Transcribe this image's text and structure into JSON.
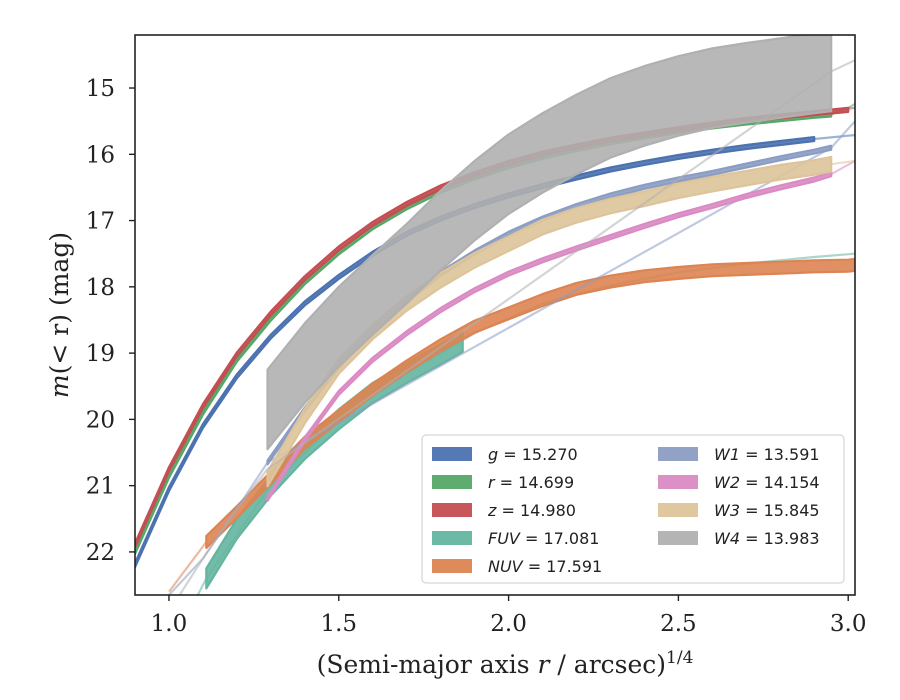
{
  "chart_data": {
    "type": "line",
    "xlabel": "(Semi-major axis r / arcsec)^{1/4}",
    "ylabel": "m(< r) (mag)",
    "xlim": [
      0.9,
      3.02
    ],
    "ylim": [
      22.65,
      14.2
    ],
    "y_inverted": true,
    "xticks": [
      1.0,
      1.5,
      2.0,
      2.5,
      3.0
    ],
    "xtick_labels": [
      "1.0",
      "1.5",
      "2.0",
      "2.5",
      "3.0"
    ],
    "yticks": [
      15,
      16,
      17,
      18,
      19,
      20,
      21,
      22
    ],
    "ytick_labels": [
      "15",
      "16",
      "17",
      "18",
      "19",
      "20",
      "21",
      "22"
    ],
    "grid": false,
    "legend_position": "lower-right",
    "legend_columns": 2,
    "series": [
      {
        "name": "g",
        "label": "g = 15.270",
        "color": "#4c72b0",
        "band": {
          "x": [
            0.9,
            1.0,
            1.1,
            1.2,
            1.3,
            1.4,
            1.5,
            1.6,
            1.7,
            1.8,
            1.9,
            2.0,
            2.1,
            2.2,
            2.3,
            2.4,
            2.5,
            2.6,
            2.7,
            2.8,
            2.9
          ],
          "y": [
            22.2,
            21.05,
            20.1,
            19.35,
            18.75,
            18.25,
            17.85,
            17.5,
            17.2,
            16.97,
            16.78,
            16.62,
            16.48,
            16.35,
            16.23,
            16.13,
            16.04,
            15.96,
            15.89,
            15.83,
            15.77
          ],
          "width": 0.06
        },
        "model": {
          "x": [
            2.9,
            3.0,
            3.02
          ],
          "y": [
            15.77,
            15.72,
            15.71
          ]
        }
      },
      {
        "name": "r",
        "label": "r = 14.699",
        "color": "#55a868",
        "band": {
          "x": [
            0.9,
            1.0,
            1.1,
            1.2,
            1.3,
            1.4,
            1.5,
            1.6,
            1.7,
            1.8,
            1.9,
            2.0,
            2.1,
            2.2,
            2.3,
            2.4,
            2.5,
            2.6,
            2.7,
            2.8,
            2.9,
            2.95
          ],
          "y": [
            22.0,
            20.85,
            19.9,
            19.1,
            18.48,
            17.93,
            17.48,
            17.1,
            16.8,
            16.55,
            16.35,
            16.18,
            16.04,
            15.92,
            15.82,
            15.73,
            15.65,
            15.58,
            15.52,
            15.47,
            15.42,
            15.4
          ],
          "width": 0.06
        },
        "model": {
          "x": [
            2.95,
            3.0,
            3.02
          ],
          "y": [
            15.4,
            15.3,
            15.24
          ]
        }
      },
      {
        "name": "z",
        "label": "z = 14.980",
        "color": "#c44e52",
        "band": {
          "x": [
            0.9,
            1.0,
            1.1,
            1.2,
            1.3,
            1.4,
            1.5,
            1.6,
            1.7,
            1.8,
            1.9,
            2.0,
            2.1,
            2.2,
            2.3,
            2.4,
            2.5,
            2.6,
            2.7,
            2.8,
            2.9,
            3.0
          ],
          "y": [
            21.9,
            20.75,
            19.8,
            19.02,
            18.4,
            17.87,
            17.42,
            17.05,
            16.75,
            16.5,
            16.3,
            16.13,
            15.99,
            15.88,
            15.78,
            15.7,
            15.62,
            15.55,
            15.48,
            15.43,
            15.38,
            15.33
          ],
          "width": 0.06
        },
        "model": {
          "x": [
            2.5,
            3.02
          ],
          "y": [
            15.62,
            15.3
          ]
        }
      },
      {
        "name": "FUV",
        "label": "FUV = 17.081",
        "color": "#64b5a0",
        "band": {
          "x": [
            1.11,
            1.2,
            1.3,
            1.4,
            1.5,
            1.6,
            1.7,
            1.8,
            1.865
          ],
          "y": [
            22.4,
            21.65,
            21.0,
            20.45,
            20.0,
            19.6,
            19.3,
            19.02,
            18.83
          ],
          "width": 0.3
        },
        "model": {
          "x": [
            1.0,
            1.11,
            1.3,
            1.5,
            1.7,
            1.9,
            2.1,
            2.3,
            2.5,
            2.7,
            2.9,
            3.02
          ],
          "y": [
            23.5,
            22.4,
            21.0,
            20.0,
            19.3,
            18.7,
            18.25,
            17.98,
            17.78,
            17.65,
            17.55,
            17.5
          ]
        }
      },
      {
        "name": "NUV",
        "label": "NUV = 17.591",
        "color": "#dd8452",
        "band": {
          "x": [
            1.11,
            1.2,
            1.3,
            1.4,
            1.5,
            1.6,
            1.7,
            1.8,
            1.9,
            2.0,
            2.1,
            2.2,
            2.3,
            2.4,
            2.5,
            2.6,
            2.7,
            2.8,
            2.9,
            3.0,
            3.02
          ],
          "y": [
            21.85,
            21.4,
            20.88,
            20.35,
            19.95,
            19.55,
            19.2,
            18.88,
            18.6,
            18.4,
            18.2,
            18.03,
            17.92,
            17.84,
            17.79,
            17.75,
            17.73,
            17.71,
            17.69,
            17.68,
            17.67
          ],
          "width": 0.18
        },
        "model": {
          "x": [
            1.0,
            1.11
          ],
          "y": [
            22.6,
            21.85
          ]
        }
      },
      {
        "name": "W1",
        "label": "W1 = 13.591",
        "color": "#8c9dc4",
        "band": {
          "x": [
            1.29,
            1.4,
            1.5,
            1.6,
            1.7,
            1.8,
            1.9,
            2.0,
            2.1,
            2.2,
            2.3,
            2.4,
            2.5,
            2.6,
            2.7,
            2.8,
            2.9,
            2.95
          ],
          "y": [
            20.65,
            19.85,
            19.2,
            18.65,
            18.2,
            17.8,
            17.48,
            17.2,
            16.97,
            16.78,
            16.62,
            16.49,
            16.38,
            16.28,
            16.17,
            16.06,
            15.96,
            15.9
          ],
          "width": 0.06
        },
        "model": {
          "x": [
            1.0,
            1.1,
            1.2,
            1.29,
            2.95,
            3.02
          ],
          "y": [
            22.65,
            22.1,
            21.35,
            20.65,
            15.9,
            15.5
          ]
        }
      },
      {
        "name": "W2",
        "label": "W2 = 14.154",
        "color": "#da8bc3",
        "band": {
          "x": [
            1.29,
            1.4,
            1.5,
            1.6,
            1.7,
            1.8,
            1.9,
            2.0,
            2.1,
            2.2,
            2.3,
            2.4,
            2.5,
            2.6,
            2.7,
            2.8,
            2.9,
            2.95
          ],
          "y": [
            21.2,
            20.3,
            19.6,
            19.1,
            18.7,
            18.35,
            18.05,
            17.8,
            17.6,
            17.42,
            17.25,
            17.08,
            16.92,
            16.78,
            16.63,
            16.5,
            16.38,
            16.3
          ],
          "width": 0.06
        },
        "model": {
          "x": [
            2.95,
            3.02
          ],
          "y": [
            16.3,
            16.1
          ]
        }
      },
      {
        "name": "W3",
        "label": "W3 = 15.845",
        "color": "#ddc49a",
        "band": {
          "x": [
            1.29,
            1.4,
            1.5,
            1.6,
            1.7,
            1.8,
            1.9,
            2.0,
            2.1,
            2.2,
            2.3,
            2.4,
            2.5,
            2.6,
            2.7,
            2.8,
            2.9,
            2.95
          ],
          "y": [
            20.9,
            19.95,
            19.2,
            18.68,
            18.25,
            17.9,
            17.6,
            17.35,
            17.1,
            16.92,
            16.78,
            16.67,
            16.55,
            16.45,
            16.36,
            16.27,
            16.2,
            16.15
          ],
          "width": 0.22
        },
        "model": {
          "x": [
            2.95,
            3.02
          ],
          "y": [
            16.15,
            16.1
          ]
        }
      },
      {
        "name": "W4",
        "label": "W4 = 13.983",
        "color": "#b0b0b0",
        "band": {
          "x": [
            1.29,
            1.4,
            1.5,
            1.6,
            1.7,
            1.8,
            1.9,
            2.0,
            2.1,
            2.2,
            2.3,
            2.4,
            2.5,
            2.6,
            2.7,
            2.8,
            2.9,
            2.95
          ],
          "y": [
            19.85,
            19.15,
            18.6,
            18.12,
            17.65,
            17.15,
            16.7,
            16.3,
            15.98,
            15.7,
            15.45,
            15.27,
            15.12,
            15.0,
            14.92,
            14.85,
            14.78,
            14.75
          ],
          "width": 1.2
        },
        "model": {
          "x": [
            1.0,
            1.1,
            1.2,
            1.29,
            2.95,
            3.02
          ],
          "y": [
            22.9,
            22.1,
            21.35,
            20.75,
            14.75,
            14.58
          ]
        }
      }
    ]
  }
}
